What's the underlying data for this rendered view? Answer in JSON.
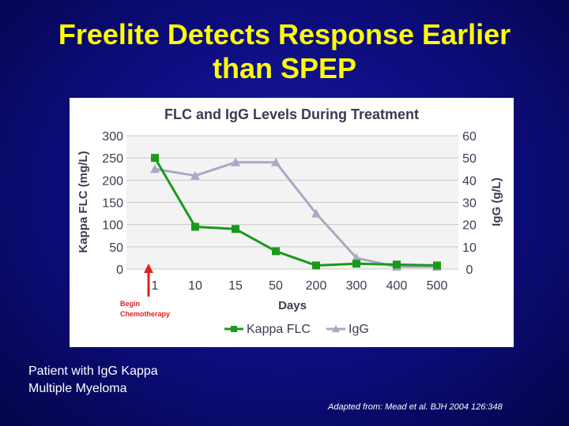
{
  "slide": {
    "title_line1": "Freelite Detects Response Earlier",
    "title_line2": "than SPEP",
    "caption_line1": "Patient with IgG Kappa",
    "caption_line2": "Multiple Myeloma",
    "source": "Adapted from: Mead et al. BJH 2004 126:348"
  },
  "chart_data": {
    "type": "line",
    "title": "FLC and IgG Levels During Treatment",
    "xlabel": "Days",
    "ylabel": "Kappa FLC (mg/L)",
    "y2label": "IgG (g/L)",
    "categories": [
      "1",
      "10",
      "15",
      "50",
      "200",
      "300",
      "400",
      "500"
    ],
    "ylim": [
      0,
      300
    ],
    "y_ticks": [
      "300",
      "250",
      "200",
      "150",
      "100",
      "50",
      "0"
    ],
    "y2lim": [
      0,
      60
    ],
    "y2_ticks": [
      "60",
      "50",
      "40",
      "30",
      "20",
      "10",
      "0"
    ],
    "grid": true,
    "legend_position": "bottom",
    "series": [
      {
        "name": "Kappa FLC",
        "axis": "left",
        "marker": "square",
        "color": "#1a9a1a",
        "values": [
          250,
          95,
          90,
          40,
          8,
          12,
          10,
          8
        ]
      },
      {
        "name": "IgG",
        "axis": "right",
        "marker": "triangle",
        "color": "#a9a9c6",
        "values": [
          45,
          42,
          48,
          48,
          25,
          5,
          1,
          1
        ]
      }
    ],
    "annotation": {
      "text_line1": "Begin",
      "text_line2": "Chemotherapy",
      "color": "#e02020"
    }
  }
}
